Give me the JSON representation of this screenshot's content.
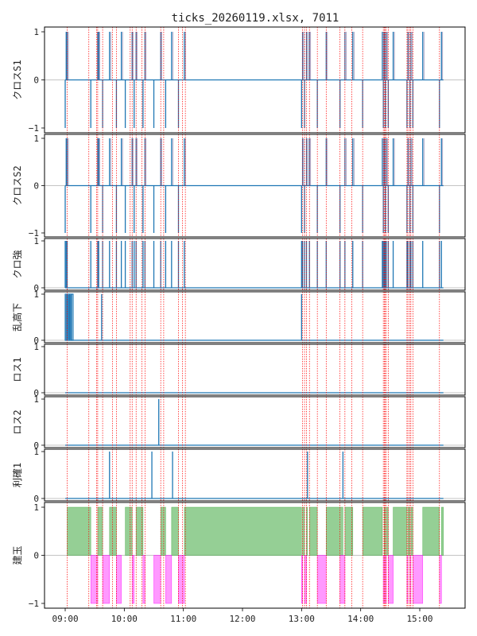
{
  "chart_data": {
    "type": "step",
    "title": "ticks_20260119.xlsx, 7011",
    "x_ticks": [
      "09:00",
      "10:00",
      "11:00",
      "12:00",
      "13:00",
      "14:00",
      "15:00"
    ],
    "x_tick_values": [
      540,
      600,
      660,
      720,
      780,
      840,
      900
    ],
    "xlim": [
      519,
      946
    ],
    "session": [
      540,
      924
    ],
    "vlines": [
      542,
      564,
      572,
      573,
      578,
      588,
      592,
      606,
      608,
      612,
      618,
      621,
      637,
      640,
      655,
      659,
      662,
      781,
      783,
      785,
      788,
      796,
      805,
      819,
      824,
      831,
      842,
      863,
      864,
      865,
      866,
      868,
      887,
      888,
      890,
      891,
      893,
      920
    ],
    "panels": [
      {
        "key": "cross1",
        "label": "クロスS1",
        "ylim": [
          -1.1,
          1.1
        ],
        "yticks": [
          -1,
          0,
          1
        ],
        "ytick_labels": [
          "−1",
          "0",
          "1"
        ],
        "color": "#1f77b4",
        "events": [
          {
            "t": 540,
            "v": -1
          },
          {
            "t": 541,
            "v": 1
          },
          {
            "t": 542,
            "v": 1
          },
          {
            "t": 566,
            "v": -1
          },
          {
            "t": 573,
            "v": 1
          },
          {
            "t": 574,
            "v": 1
          },
          {
            "t": 578,
            "v": -1
          },
          {
            "t": 585,
            "v": 1
          },
          {
            "t": 592,
            "v": -1
          },
          {
            "t": 597,
            "v": 1
          },
          {
            "t": 601,
            "v": -1
          },
          {
            "t": 608,
            "v": 1
          },
          {
            "t": 610,
            "v": -1
          },
          {
            "t": 612,
            "v": 1
          },
          {
            "t": 619,
            "v": -1
          },
          {
            "t": 621,
            "v": 1
          },
          {
            "t": 630,
            "v": -1
          },
          {
            "t": 637,
            "v": 1
          },
          {
            "t": 642,
            "v": -1
          },
          {
            "t": 648,
            "v": 1
          },
          {
            "t": 655,
            "v": -1
          },
          {
            "t": 661,
            "v": 1
          },
          {
            "t": 780,
            "v": -1
          },
          {
            "t": 781,
            "v": 1
          },
          {
            "t": 783,
            "v": -1
          },
          {
            "t": 785,
            "v": 1
          },
          {
            "t": 788,
            "v": 1
          },
          {
            "t": 796,
            "v": -1
          },
          {
            "t": 805,
            "v": 1
          },
          {
            "t": 819,
            "v": -1
          },
          {
            "t": 824,
            "v": 1
          },
          {
            "t": 832,
            "v": 1
          },
          {
            "t": 842,
            "v": -1
          },
          {
            "t": 862,
            "v": 1
          },
          {
            "t": 863,
            "v": -1
          },
          {
            "t": 864,
            "v": 1
          },
          {
            "t": 865,
            "v": -1
          },
          {
            "t": 866,
            "v": 1
          },
          {
            "t": 868,
            "v": -1
          },
          {
            "t": 873,
            "v": 1
          },
          {
            "t": 887,
            "v": -1
          },
          {
            "t": 888,
            "v": 1
          },
          {
            "t": 890,
            "v": -1
          },
          {
            "t": 891,
            "v": 1
          },
          {
            "t": 893,
            "v": -1
          },
          {
            "t": 903,
            "v": 1
          },
          {
            "t": 920,
            "v": -1
          },
          {
            "t": 922,
            "v": 1
          }
        ]
      },
      {
        "key": "cross2",
        "label": "クロスS2",
        "ylim": [
          -1.1,
          1.1
        ],
        "yticks": [
          -1,
          0,
          1
        ],
        "ytick_labels": [
          "−1",
          "0",
          "1"
        ],
        "color": "#1f77b4",
        "events": [
          {
            "t": 540,
            "v": -1
          },
          {
            "t": 541,
            "v": 1
          },
          {
            "t": 542,
            "v": 1
          },
          {
            "t": 566,
            "v": -1
          },
          {
            "t": 573,
            "v": 1
          },
          {
            "t": 574,
            "v": 1
          },
          {
            "t": 578,
            "v": -1
          },
          {
            "t": 585,
            "v": 1
          },
          {
            "t": 592,
            "v": -1
          },
          {
            "t": 597,
            "v": 1
          },
          {
            "t": 601,
            "v": -1
          },
          {
            "t": 608,
            "v": 1
          },
          {
            "t": 610,
            "v": -1
          },
          {
            "t": 612,
            "v": 1
          },
          {
            "t": 619,
            "v": -1
          },
          {
            "t": 621,
            "v": 1
          },
          {
            "t": 630,
            "v": -1
          },
          {
            "t": 637,
            "v": 1
          },
          {
            "t": 642,
            "v": -1
          },
          {
            "t": 648,
            "v": 1
          },
          {
            "t": 655,
            "v": -1
          },
          {
            "t": 661,
            "v": 1
          },
          {
            "t": 780,
            "v": -1
          },
          {
            "t": 781,
            "v": 1
          },
          {
            "t": 783,
            "v": -1
          },
          {
            "t": 785,
            "v": 1
          },
          {
            "t": 788,
            "v": 1
          },
          {
            "t": 796,
            "v": -1
          },
          {
            "t": 805,
            "v": 1
          },
          {
            "t": 819,
            "v": -1
          },
          {
            "t": 824,
            "v": 1
          },
          {
            "t": 832,
            "v": 1
          },
          {
            "t": 842,
            "v": -1
          },
          {
            "t": 862,
            "v": 1
          },
          {
            "t": 863,
            "v": -1
          },
          {
            "t": 864,
            "v": 1
          },
          {
            "t": 865,
            "v": -1
          },
          {
            "t": 866,
            "v": 1
          },
          {
            "t": 868,
            "v": -1
          },
          {
            "t": 873,
            "v": 1
          },
          {
            "t": 887,
            "v": -1
          },
          {
            "t": 888,
            "v": 1
          },
          {
            "t": 890,
            "v": -1
          },
          {
            "t": 891,
            "v": 1
          },
          {
            "t": 893,
            "v": -1
          },
          {
            "t": 903,
            "v": 1
          },
          {
            "t": 920,
            "v": -1
          },
          {
            "t": 922,
            "v": 1
          }
        ]
      },
      {
        "key": "strong",
        "label": "クロ強",
        "ylim": [
          -0.05,
          1.05
        ],
        "yticks": [
          0,
          1
        ],
        "ytick_labels": [
          "0",
          "1"
        ],
        "color": "#1f77b4",
        "events": [
          {
            "t": 540,
            "v": 1
          },
          {
            "t": 541,
            "v": 1
          },
          {
            "t": 542,
            "v": 1
          },
          {
            "t": 566,
            "v": 1
          },
          {
            "t": 573,
            "v": 1
          },
          {
            "t": 574,
            "v": 1
          },
          {
            "t": 578,
            "v": 1
          },
          {
            "t": 585,
            "v": 1
          },
          {
            "t": 592,
            "v": 1
          },
          {
            "t": 597,
            "v": 1
          },
          {
            "t": 601,
            "v": 1
          },
          {
            "t": 608,
            "v": 1
          },
          {
            "t": 610,
            "v": 1
          },
          {
            "t": 612,
            "v": 1
          },
          {
            "t": 619,
            "v": 1
          },
          {
            "t": 621,
            "v": 1
          },
          {
            "t": 630,
            "v": 1
          },
          {
            "t": 637,
            "v": 1
          },
          {
            "t": 642,
            "v": 1
          },
          {
            "t": 648,
            "v": 1
          },
          {
            "t": 655,
            "v": 1
          },
          {
            "t": 661,
            "v": 1
          },
          {
            "t": 780,
            "v": 1
          },
          {
            "t": 781,
            "v": 1
          },
          {
            "t": 783,
            "v": 1
          },
          {
            "t": 785,
            "v": 1
          },
          {
            "t": 788,
            "v": 1
          },
          {
            "t": 796,
            "v": 1
          },
          {
            "t": 805,
            "v": 1
          },
          {
            "t": 819,
            "v": 1
          },
          {
            "t": 824,
            "v": 1
          },
          {
            "t": 832,
            "v": 1
          },
          {
            "t": 842,
            "v": 1
          },
          {
            "t": 862,
            "v": 1
          },
          {
            "t": 863,
            "v": 1
          },
          {
            "t": 864,
            "v": 1
          },
          {
            "t": 865,
            "v": 1
          },
          {
            "t": 866,
            "v": 1
          },
          {
            "t": 868,
            "v": 1
          },
          {
            "t": 873,
            "v": 1
          },
          {
            "t": 887,
            "v": 1
          },
          {
            "t": 888,
            "v": 1
          },
          {
            "t": 890,
            "v": 1
          },
          {
            "t": 891,
            "v": 1
          },
          {
            "t": 893,
            "v": 1
          },
          {
            "t": 903,
            "v": 1
          },
          {
            "t": 920,
            "v": 1
          },
          {
            "t": 922,
            "v": 1
          }
        ]
      },
      {
        "key": "volatile",
        "label": "乱高下",
        "ylim": [
          -0.05,
          1.05
        ],
        "yticks": [
          0,
          1
        ],
        "ytick_labels": [
          "0",
          "1"
        ],
        "color": "#1f77b4",
        "blocks": [
          [
            540,
            541
          ],
          [
            542,
            543
          ],
          [
            543.5,
            544.5
          ],
          [
            545,
            546
          ],
          [
            546.5,
            548
          ]
        ],
        "events": [
          {
            "t": 577,
            "v": 1
          },
          {
            "t": 780,
            "v": 1
          }
        ]
      },
      {
        "key": "loss1",
        "label": "ロス1",
        "ylim": [
          -0.05,
          1.05
        ],
        "yticks": [
          0,
          1
        ],
        "ytick_labels": [
          "0",
          "1"
        ],
        "color": "#1f77b4",
        "events": []
      },
      {
        "key": "loss2",
        "label": "ロス2",
        "ylim": [
          -0.05,
          1.05
        ],
        "yticks": [
          0,
          1
        ],
        "ytick_labels": [
          "0",
          "1"
        ],
        "color": "#1f77b4",
        "events": [
          {
            "t": 635,
            "v": 1
          }
        ]
      },
      {
        "key": "profit1",
        "label": "利確1",
        "ylim": [
          -0.05,
          1.05
        ],
        "yticks": [
          0,
          1
        ],
        "ytick_labels": [
          "0",
          "1"
        ],
        "color": "#1f77b4",
        "events": [
          {
            "t": 585,
            "v": 1
          },
          {
            "t": 628,
            "v": 1
          },
          {
            "t": 649,
            "v": 1
          },
          {
            "t": 786,
            "v": 1
          },
          {
            "t": 822,
            "v": 1
          }
        ]
      },
      {
        "key": "position",
        "label": "建玉",
        "ylim": [
          -1.1,
          1.1
        ],
        "yticks": [
          -1,
          0,
          1
        ],
        "ytick_labels": [
          "−1",
          "0",
          "1"
        ],
        "long_color": "#2ca02c",
        "short_color": "#ff00ff",
        "long": [
          [
            542,
            566
          ],
          [
            573,
            578
          ],
          [
            585,
            592
          ],
          [
            601,
            608
          ],
          [
            612,
            619
          ],
          [
            637,
            642
          ],
          [
            648,
            655
          ],
          [
            661,
            780
          ],
          [
            781,
            783
          ],
          [
            785,
            786
          ],
          [
            788,
            796
          ],
          [
            805,
            822
          ],
          [
            824,
            832
          ],
          [
            842,
            862
          ],
          [
            864,
            865
          ],
          [
            866,
            868
          ],
          [
            873,
            887
          ],
          [
            888,
            890
          ],
          [
            891,
            893
          ],
          [
            903,
            920
          ],
          [
            922,
            924
          ]
        ],
        "short": [
          [
            566,
            573
          ],
          [
            578,
            585
          ],
          [
            592,
            597
          ],
          [
            608,
            610
          ],
          [
            619,
            621
          ],
          [
            630,
            637
          ],
          [
            642,
            648
          ],
          [
            655,
            661
          ],
          [
            780,
            781
          ],
          [
            783,
            785
          ],
          [
            796,
            805
          ],
          [
            819,
            824
          ],
          [
            863,
            864
          ],
          [
            865,
            866
          ],
          [
            868,
            873
          ],
          [
            887,
            888
          ],
          [
            890,
            891
          ],
          [
            893,
            903
          ],
          [
            920,
            922
          ]
        ]
      }
    ]
  }
}
